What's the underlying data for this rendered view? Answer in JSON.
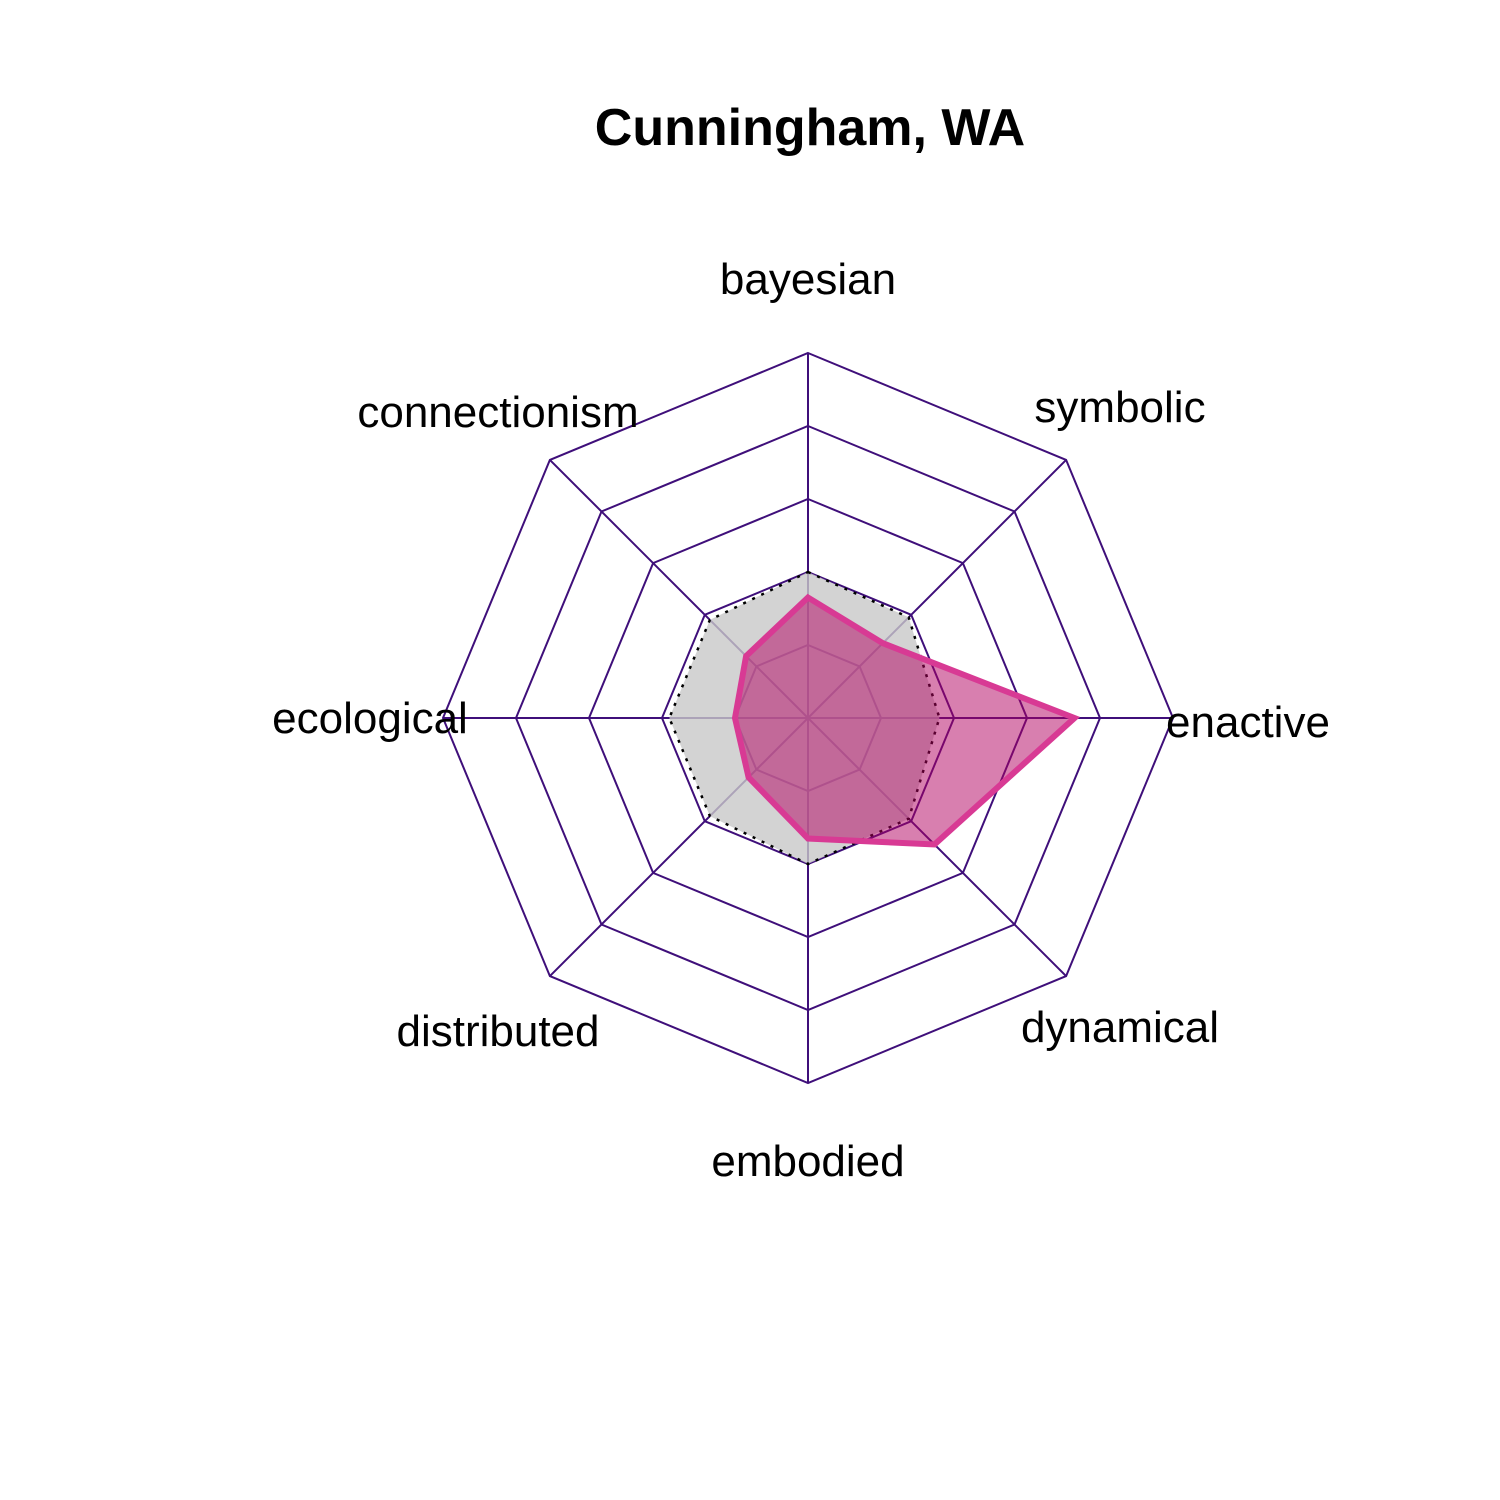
{
  "chart_data": {
    "type": "radar",
    "title": "Cunningham, WA",
    "axes": [
      "bayesian",
      "symbolic",
      "enactive",
      "dynamical",
      "embodied",
      "distributed",
      "ecological",
      "connectionism"
    ],
    "rmin": 0,
    "rmax": 1,
    "grid_levels": 5,
    "series": [
      {
        "values": [
          0.33,
          0.29,
          0.73,
          0.49,
          0.33,
          0.23,
          0.2,
          0.24
        ]
      },
      {
        "values": [
          0.4,
          0.39,
          0.36,
          0.39,
          0.4,
          0.38,
          0.38,
          0.38
        ]
      }
    ],
    "colors": {
      "grid": "#3f0f7a",
      "series_1_line": "#d83a94",
      "series_1_fill": "#b1005f",
      "series_2_fill": "#c8c8c8",
      "series_2_line": "#000000"
    }
  }
}
